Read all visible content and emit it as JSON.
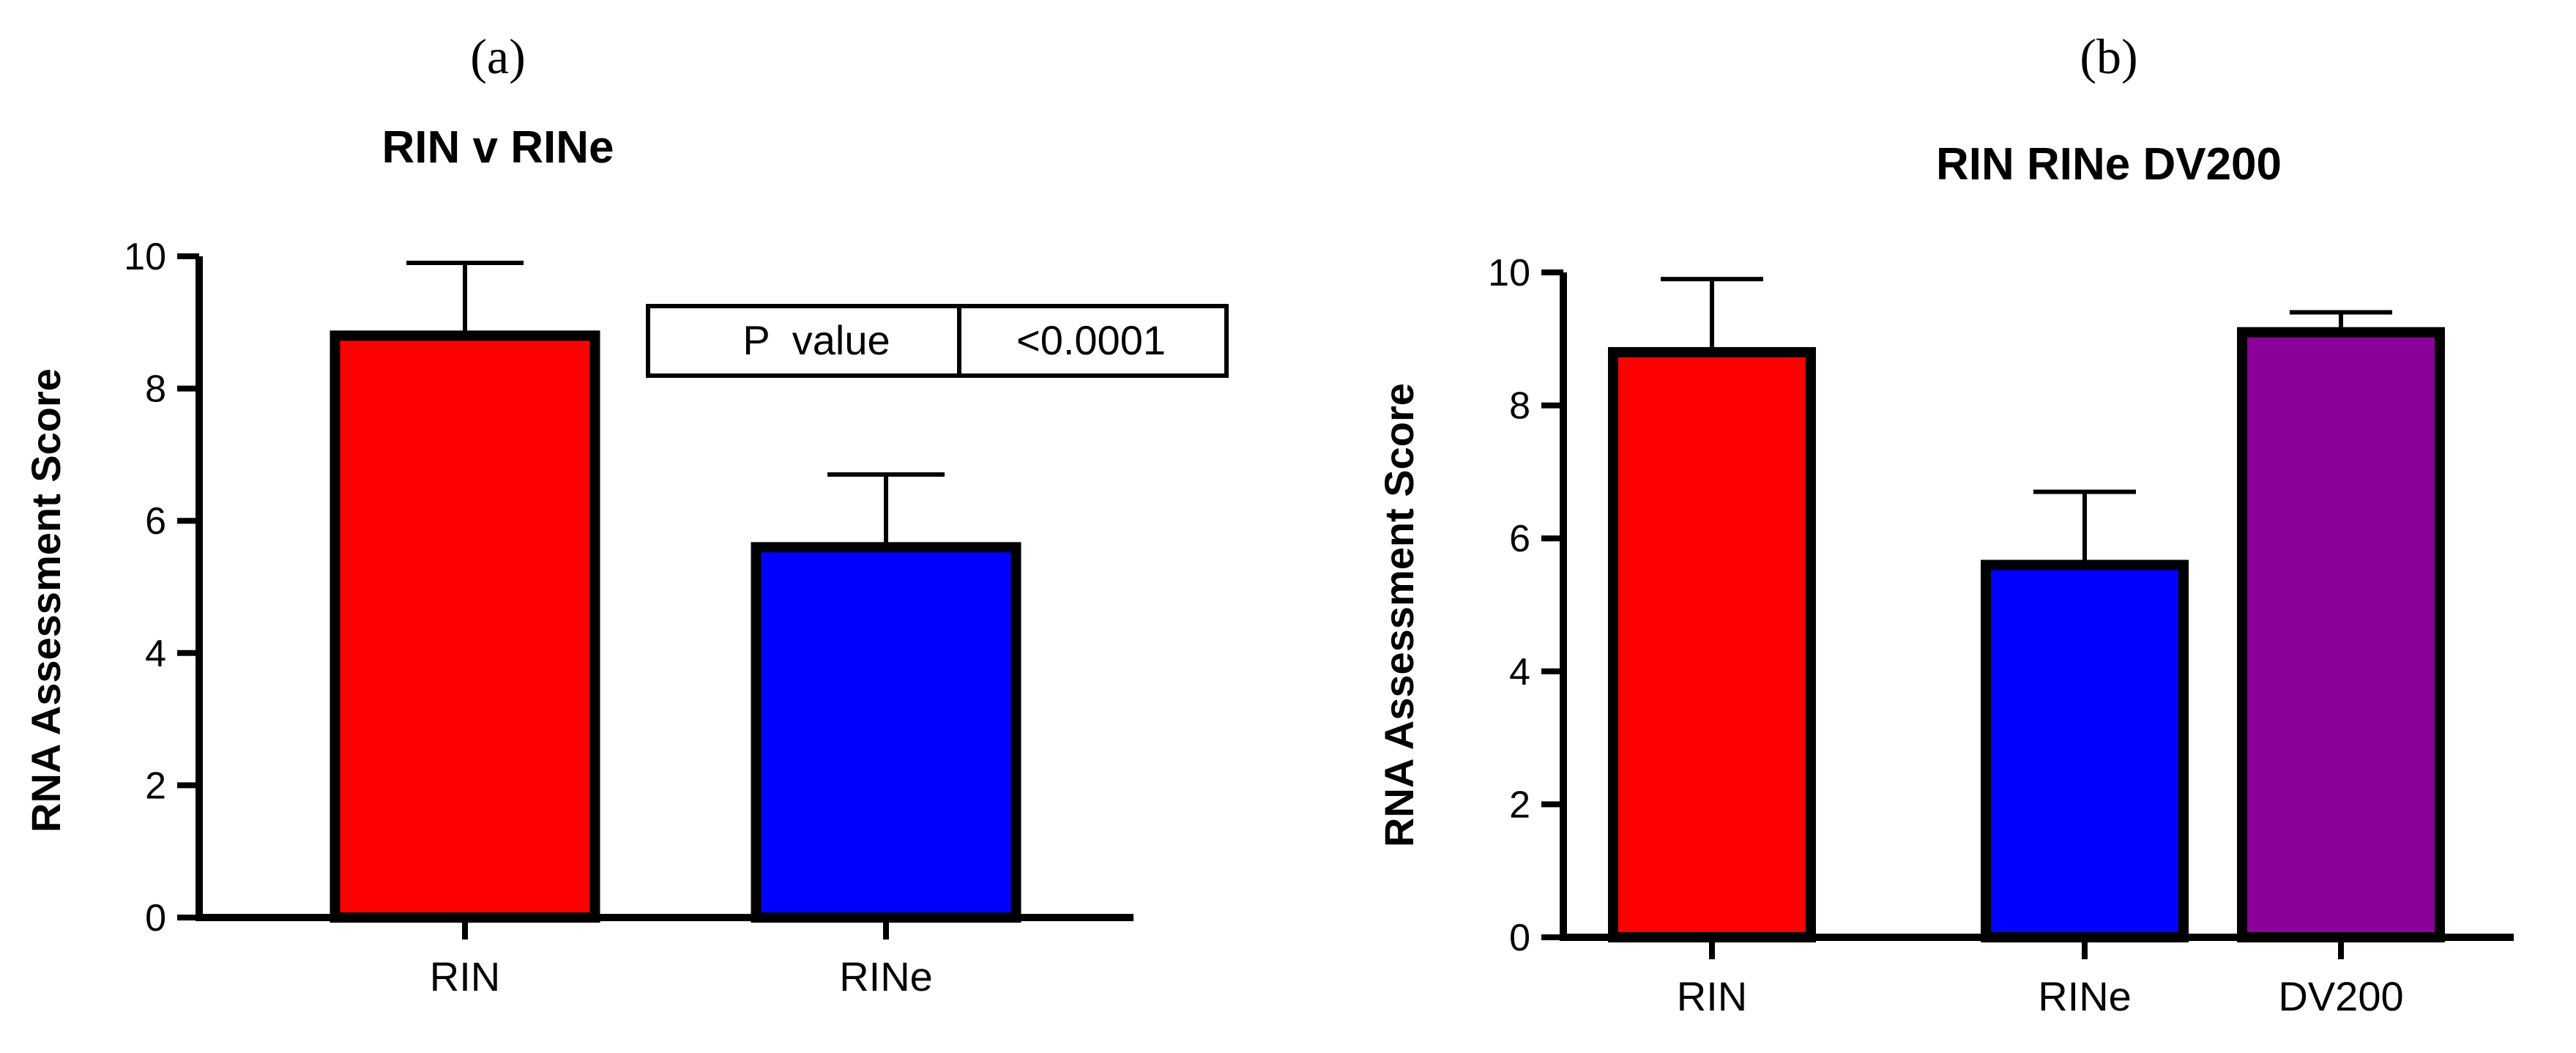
{
  "chart_data": [
    {
      "type": "bar",
      "panel_label": "(a)",
      "title": "RIN v RINe",
      "xlabel": "",
      "ylabel": "RNA Assessment  Score",
      "categories": [
        "RIN",
        "RINe"
      ],
      "values": [
        8.8,
        5.6
      ],
      "error_up": [
        1.1,
        1.1
      ],
      "colors": [
        "#ff0000",
        "#0000ff"
      ],
      "ylim": [
        0,
        10
      ],
      "yticks": [
        0,
        2,
        4,
        6,
        8,
        10
      ],
      "grid": false,
      "annotation": {
        "label": "P  value",
        "value": "<0.0001"
      }
    },
    {
      "type": "bar",
      "panel_label": "(b)",
      "title": "RIN RINe DV200",
      "xlabel": "",
      "ylabel": "RNA Assessment  Score",
      "categories": [
        "RIN",
        "RINe",
        "DV200"
      ],
      "values": [
        8.8,
        5.6,
        9.1
      ],
      "error_up": [
        1.1,
        1.1,
        0.3
      ],
      "colors": [
        "#ff0000",
        "#0000ff",
        "#8b0099"
      ],
      "ylim": [
        0,
        10
      ],
      "yticks": [
        0,
        2,
        4,
        6,
        8,
        10
      ],
      "grid": false
    }
  ]
}
